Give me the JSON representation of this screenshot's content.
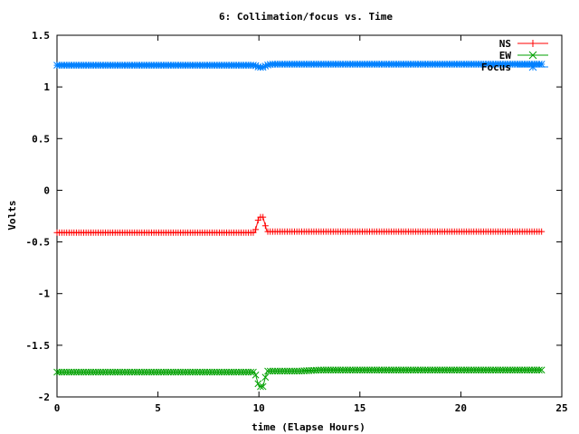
{
  "chart_data": {
    "type": "line",
    "title": "6: Collimation/focus vs. Time",
    "xlabel": "time (Elapse Hours)",
    "ylabel": "Volts",
    "xlim": [
      0,
      25
    ],
    "ylim": [
      -2,
      1.5
    ],
    "xticks": [
      0,
      5,
      10,
      15,
      20,
      25
    ],
    "xtick_labels": [
      "0",
      "5",
      "10",
      "15",
      "20",
      "25"
    ],
    "yticks": [
      -2,
      -1.5,
      -1,
      -0.5,
      0,
      0.5,
      1,
      1.5
    ],
    "ytick_labels": [
      "-2",
      "-1.5",
      "-1",
      "-0.5",
      "0",
      "0.5",
      "1",
      "1.5"
    ],
    "grid": false,
    "legend_position": "top-right",
    "series": [
      {
        "name": "NS",
        "color": "#ff0000",
        "marker": "plus",
        "x": [
          0,
          1,
          2,
          3,
          4,
          5,
          6,
          7,
          8,
          9,
          9.8,
          10.0,
          10.2,
          10.4,
          10.6,
          11,
          12,
          13,
          14,
          15,
          16,
          17,
          18,
          19,
          20,
          21,
          22,
          23,
          24
        ],
        "y": [
          -0.41,
          -0.41,
          -0.41,
          -0.41,
          -0.41,
          -0.41,
          -0.41,
          -0.41,
          -0.41,
          -0.41,
          -0.41,
          -0.26,
          -0.26,
          -0.4,
          -0.4,
          -0.4,
          -0.4,
          -0.4,
          -0.4,
          -0.4,
          -0.4,
          -0.4,
          -0.4,
          -0.4,
          -0.4,
          -0.4,
          -0.4,
          -0.4,
          -0.4
        ]
      },
      {
        "name": "EW",
        "color": "#00a000",
        "marker": "x",
        "x": [
          0,
          1,
          2,
          3,
          4,
          5,
          6,
          7,
          8,
          9,
          9.8,
          10.0,
          10.2,
          10.4,
          10.6,
          11,
          12,
          13,
          14,
          15,
          16,
          17,
          18,
          19,
          20,
          21,
          22,
          23,
          24
        ],
        "y": [
          -1.76,
          -1.76,
          -1.76,
          -1.76,
          -1.76,
          -1.76,
          -1.76,
          -1.76,
          -1.76,
          -1.76,
          -1.76,
          -1.9,
          -1.9,
          -1.75,
          -1.75,
          -1.75,
          -1.75,
          -1.74,
          -1.74,
          -1.74,
          -1.74,
          -1.74,
          -1.74,
          -1.74,
          -1.74,
          -1.74,
          -1.74,
          -1.74,
          -1.74
        ]
      },
      {
        "name": "Focus",
        "color": "#0080ff",
        "marker": "star",
        "x": [
          0,
          1,
          2,
          3,
          4,
          5,
          6,
          7,
          8,
          9,
          9.8,
          10.0,
          10.2,
          10.4,
          10.6,
          11,
          12,
          13,
          14,
          15,
          16,
          17,
          18,
          19,
          20,
          21,
          22,
          23,
          24
        ],
        "y": [
          1.21,
          1.21,
          1.21,
          1.21,
          1.21,
          1.21,
          1.21,
          1.21,
          1.21,
          1.21,
          1.21,
          1.19,
          1.19,
          1.21,
          1.22,
          1.22,
          1.22,
          1.22,
          1.22,
          1.22,
          1.22,
          1.22,
          1.22,
          1.22,
          1.22,
          1.22,
          1.22,
          1.22,
          1.22
        ]
      }
    ]
  }
}
